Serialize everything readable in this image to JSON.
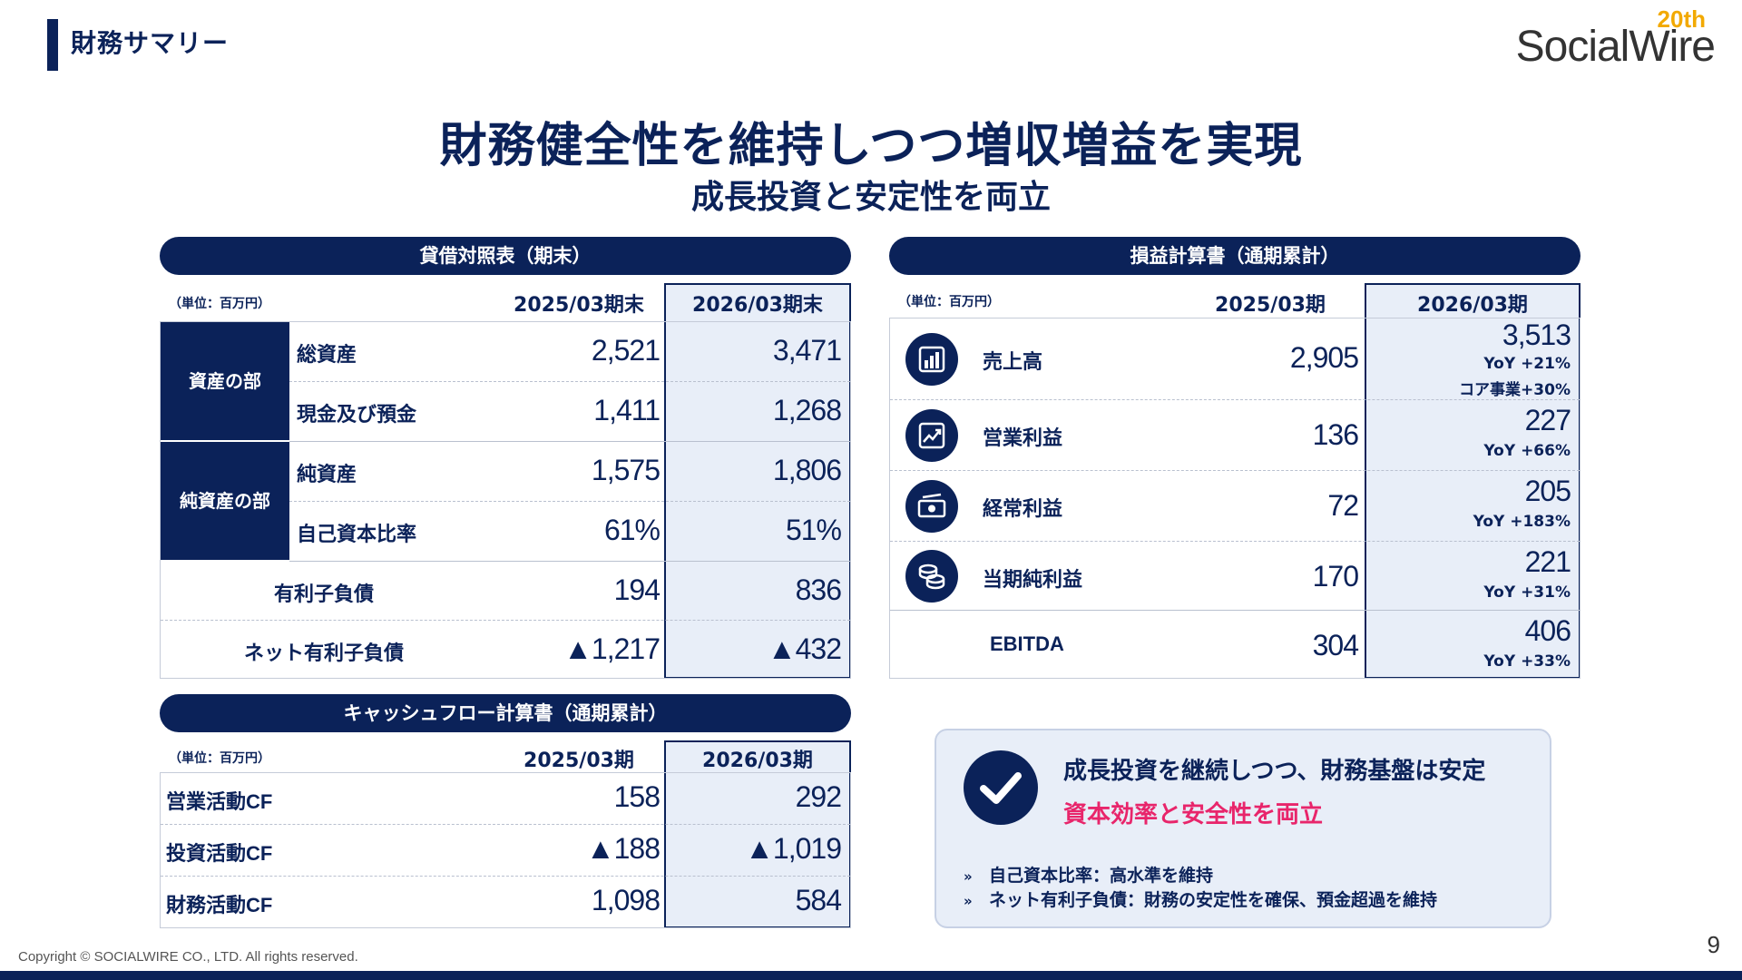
{
  "header": {
    "section": "財務サマリー",
    "logo_year": "20th",
    "logo_name": "SocialWire"
  },
  "title": "財務健全性を維持しつつ増収増益を実現",
  "subtitle": "成長投資と安定性を両立",
  "balance_sheet": {
    "title": "貸借対照表（期末）",
    "unit": "（単位：百万円）",
    "col_prev": "2025/03期末",
    "col_curr": "2026/03期末",
    "groups": [
      "資産の部",
      "純資産の部"
    ],
    "rows": [
      {
        "label": "総資産",
        "prev": "2,521",
        "curr": "3,471"
      },
      {
        "label": "現金及び預金",
        "prev": "1,411",
        "curr": "1,268"
      },
      {
        "label": "純資産",
        "prev": "1,575",
        "curr": "1,806"
      },
      {
        "label": "自己資本比率",
        "prev": "61%",
        "curr": "51%"
      },
      {
        "label": "有利子負債",
        "prev": "194",
        "curr": "836"
      },
      {
        "label": "ネット有利子負債",
        "prev": "▲1,217",
        "curr": "▲432"
      }
    ]
  },
  "income_statement": {
    "title": "損益計算書（通期累計）",
    "unit": "（単位：百万円）",
    "col_prev": "2025/03期",
    "col_curr": "2026/03期",
    "rows": [
      {
        "icon": "bar-chart-icon",
        "label": "売上高",
        "prev": "2,905",
        "curr": "3,513",
        "yoy": "YoY +21%",
        "note": "コア事業+30%"
      },
      {
        "icon": "trend-chart-icon",
        "label": "営業利益",
        "prev": "136",
        "curr": "227",
        "yoy": "YoY +66%"
      },
      {
        "icon": "cash-icon",
        "label": "経常利益",
        "prev": "72",
        "curr": "205",
        "yoy": "YoY +183%"
      },
      {
        "icon": "coins-icon",
        "label": "当期純利益",
        "prev": "170",
        "curr": "221",
        "yoy": "YoY +31%"
      },
      {
        "label": "EBITDA",
        "prev": "304",
        "curr": "406",
        "yoy": "YoY +33%"
      }
    ]
  },
  "cash_flow": {
    "title": "キャッシュフロー計算書（通期累計）",
    "unit": "（単位：百万円）",
    "col_prev": "2025/03期",
    "col_curr": "2026/03期",
    "rows": [
      {
        "label": "営業活動CF",
        "prev": "158",
        "curr": "292"
      },
      {
        "label": "投資活動CF",
        "prev": "▲188",
        "curr": "▲1,019"
      },
      {
        "label": "財務活動CF",
        "prev": "1,098",
        "curr": "584"
      }
    ]
  },
  "summary": {
    "heading": "成長投資を継続しつつ、財務基盤は安定",
    "highlight": "資本効率と安全性を両立",
    "bullet_marker": "»",
    "bullets": [
      "自己資本比率：高水準を維持",
      "ネット有利子負債：財務の安定性を確保、預金超過を維持"
    ]
  },
  "footer": {
    "copyright": "Copyright © SOCIALWIRE CO., LTD. All rights reserved.",
    "page": "9"
  },
  "colors": {
    "navy": "#0b2259",
    "highlight_bg": "#e8eef8",
    "accent_pink": "#e8256b",
    "logo_gold": "#f2a900"
  }
}
